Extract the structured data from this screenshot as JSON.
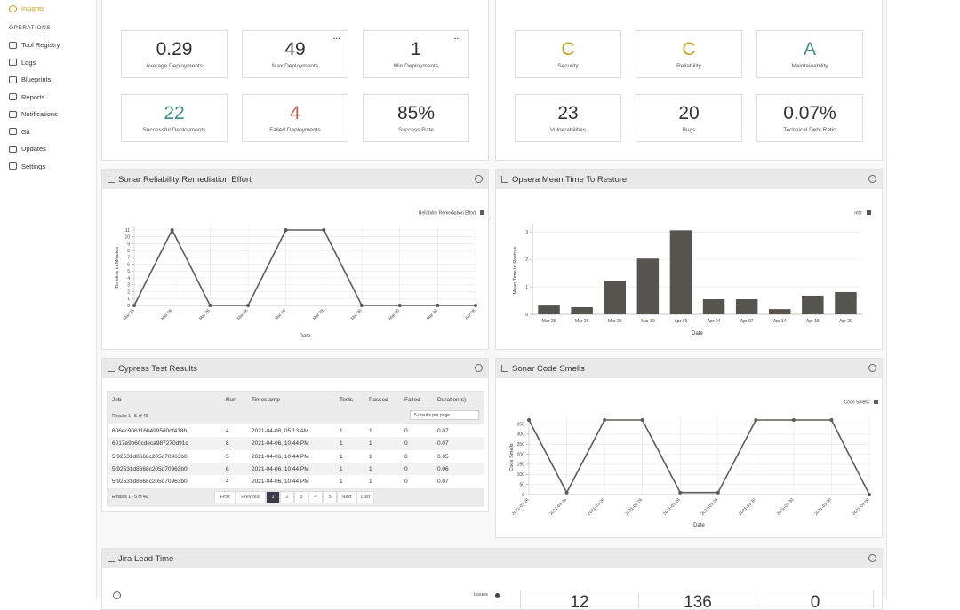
{
  "sidebar": {
    "active": "Insights",
    "section": "OPERATIONS",
    "items": [
      "Tool Registry",
      "Logs",
      "Blueprints",
      "Reports",
      "Notifications",
      "Git",
      "Updates",
      "Settings"
    ]
  },
  "deployment_metrics": [
    {
      "value": "0.29",
      "label": "Average Deployments"
    },
    {
      "value": "49",
      "label": "Max Deployments"
    },
    {
      "value": "1",
      "label": "Min Deployments"
    },
    {
      "value": "22",
      "label": "Successful Deployments"
    },
    {
      "value": "4",
      "label": "Failed Deployments"
    },
    {
      "value": "85%",
      "label": "Success Rate"
    }
  ],
  "quality_metrics": [
    {
      "value": "C",
      "label": "Security"
    },
    {
      "value": "C",
      "label": "Reliability"
    },
    {
      "value": "A",
      "label": "Maintainability"
    },
    {
      "value": "23",
      "label": "Vulnerabilities"
    },
    {
      "value": "20",
      "label": "Bugs"
    },
    {
      "value": "0.07%",
      "label": "Technical Debt Ratio"
    }
  ],
  "reliability_panel": {
    "title": "Sonar Reliability Remediation Effort",
    "chart_data": {
      "type": "line",
      "categories": [
        "Mar 25",
        "Mar 26",
        "Mar 26",
        "Mar 26",
        "Mar 26",
        "Mar 28",
        "Mar 30",
        "Mar 30",
        "Mar 30",
        "Apr 06"
      ],
      "series": [
        {
          "name": "Reliability Remediation Effort",
          "color": "#5f5b57",
          "values": [
            0,
            11,
            0,
            0,
            11,
            11,
            0,
            0,
            0,
            0
          ]
        }
      ],
      "ylim": [
        0,
        11
      ],
      "yticks": [
        0,
        1,
        2,
        3,
        4,
        5,
        6,
        7,
        8,
        9,
        10,
        11
      ],
      "y_label": "Timeline in Minutes",
      "x_label": "Date",
      "grid": true
    }
  },
  "mttr_panel": {
    "title": "Opsera Mean Time To Restore",
    "chart_data": {
      "type": "bar",
      "categories": [
        "Mar 25",
        "Mar 26",
        "Mar 29",
        "Mar 30",
        "Apr 03",
        "Apr 04",
        "Apr 07",
        "Apr 14",
        "Apr 15",
        "Apr 20"
      ],
      "series": [
        {
          "name": "mttr",
          "color": "#57534f",
          "values": [
            0.32,
            0.26,
            1.2,
            2.03,
            3.06,
            0.55,
            0.55,
            0.19,
            0.68,
            0.81
          ]
        }
      ],
      "ylim": [
        0,
        3.2
      ],
      "yticks": [
        0,
        1,
        2,
        3
      ],
      "y_label": "Mean Time to Restore",
      "x_label": "Date",
      "grid": true
    }
  },
  "cypress_panel": {
    "title": "Cypress Test Results",
    "table": {
      "columns": [
        "Job",
        "Run",
        "Timestamp",
        "Tests",
        "Passed",
        "Failed",
        "Duration(s)"
      ],
      "rows": [
        [
          "606ec906116b4995d0df438b",
          "4",
          "2021-04-08, 05:13 AM",
          "1",
          "1",
          "0",
          "0.07"
        ],
        [
          "6017e9b60cdeca987270d91c",
          "8",
          "2021-04-06, 10:44 PM",
          "1",
          "1",
          "0",
          "0.07"
        ],
        [
          "5f92531d8668c205d70963b0",
          "5",
          "2021-04-06, 10:44 PM",
          "1",
          "1",
          "0",
          "0.05"
        ],
        [
          "5f92531d8668c205d70963b0",
          "6",
          "2021-04-06, 10:44 PM",
          "1",
          "1",
          "0",
          "0.06"
        ],
        [
          "5f92531d8668c205d70963b0",
          "4",
          "2021-04-06, 10:44 PM",
          "1",
          "1",
          "0",
          "0.07"
        ]
      ],
      "results_text": "Results 1 - 5 of 40",
      "page_size": "5 results per page",
      "pagination": [
        "First",
        "Previous",
        "1",
        "2",
        "3",
        "4",
        "5",
        "Next",
        "Last"
      ]
    }
  },
  "smells_panel": {
    "title": "Sonar Code Smells",
    "chart_data": {
      "type": "line",
      "categories": [
        "2021-03-26",
        "2021-03-26",
        "2021-03-26",
        "2021-03-26",
        "2021-03-26",
        "2021-03-29",
        "2021-03-30",
        "2021-03-30",
        "2021-03-30",
        "2021-04-06"
      ],
      "series": [
        {
          "name": "Code Smells",
          "color": "#5f5b57",
          "values": [
            370,
            10,
            370,
            370,
            10,
            10,
            370,
            370,
            370,
            0
          ]
        }
      ],
      "ylim": [
        0,
        370
      ],
      "yticks": [
        0,
        50,
        100,
        150,
        200,
        250,
        300,
        350
      ],
      "y_label": "Code Smells",
      "x_label": "Date",
      "grid": true
    }
  },
  "jira_panel": {
    "title": "Jira Lead Time",
    "legend": "Issues",
    "stats": [
      "12",
      "136",
      "0"
    ]
  }
}
